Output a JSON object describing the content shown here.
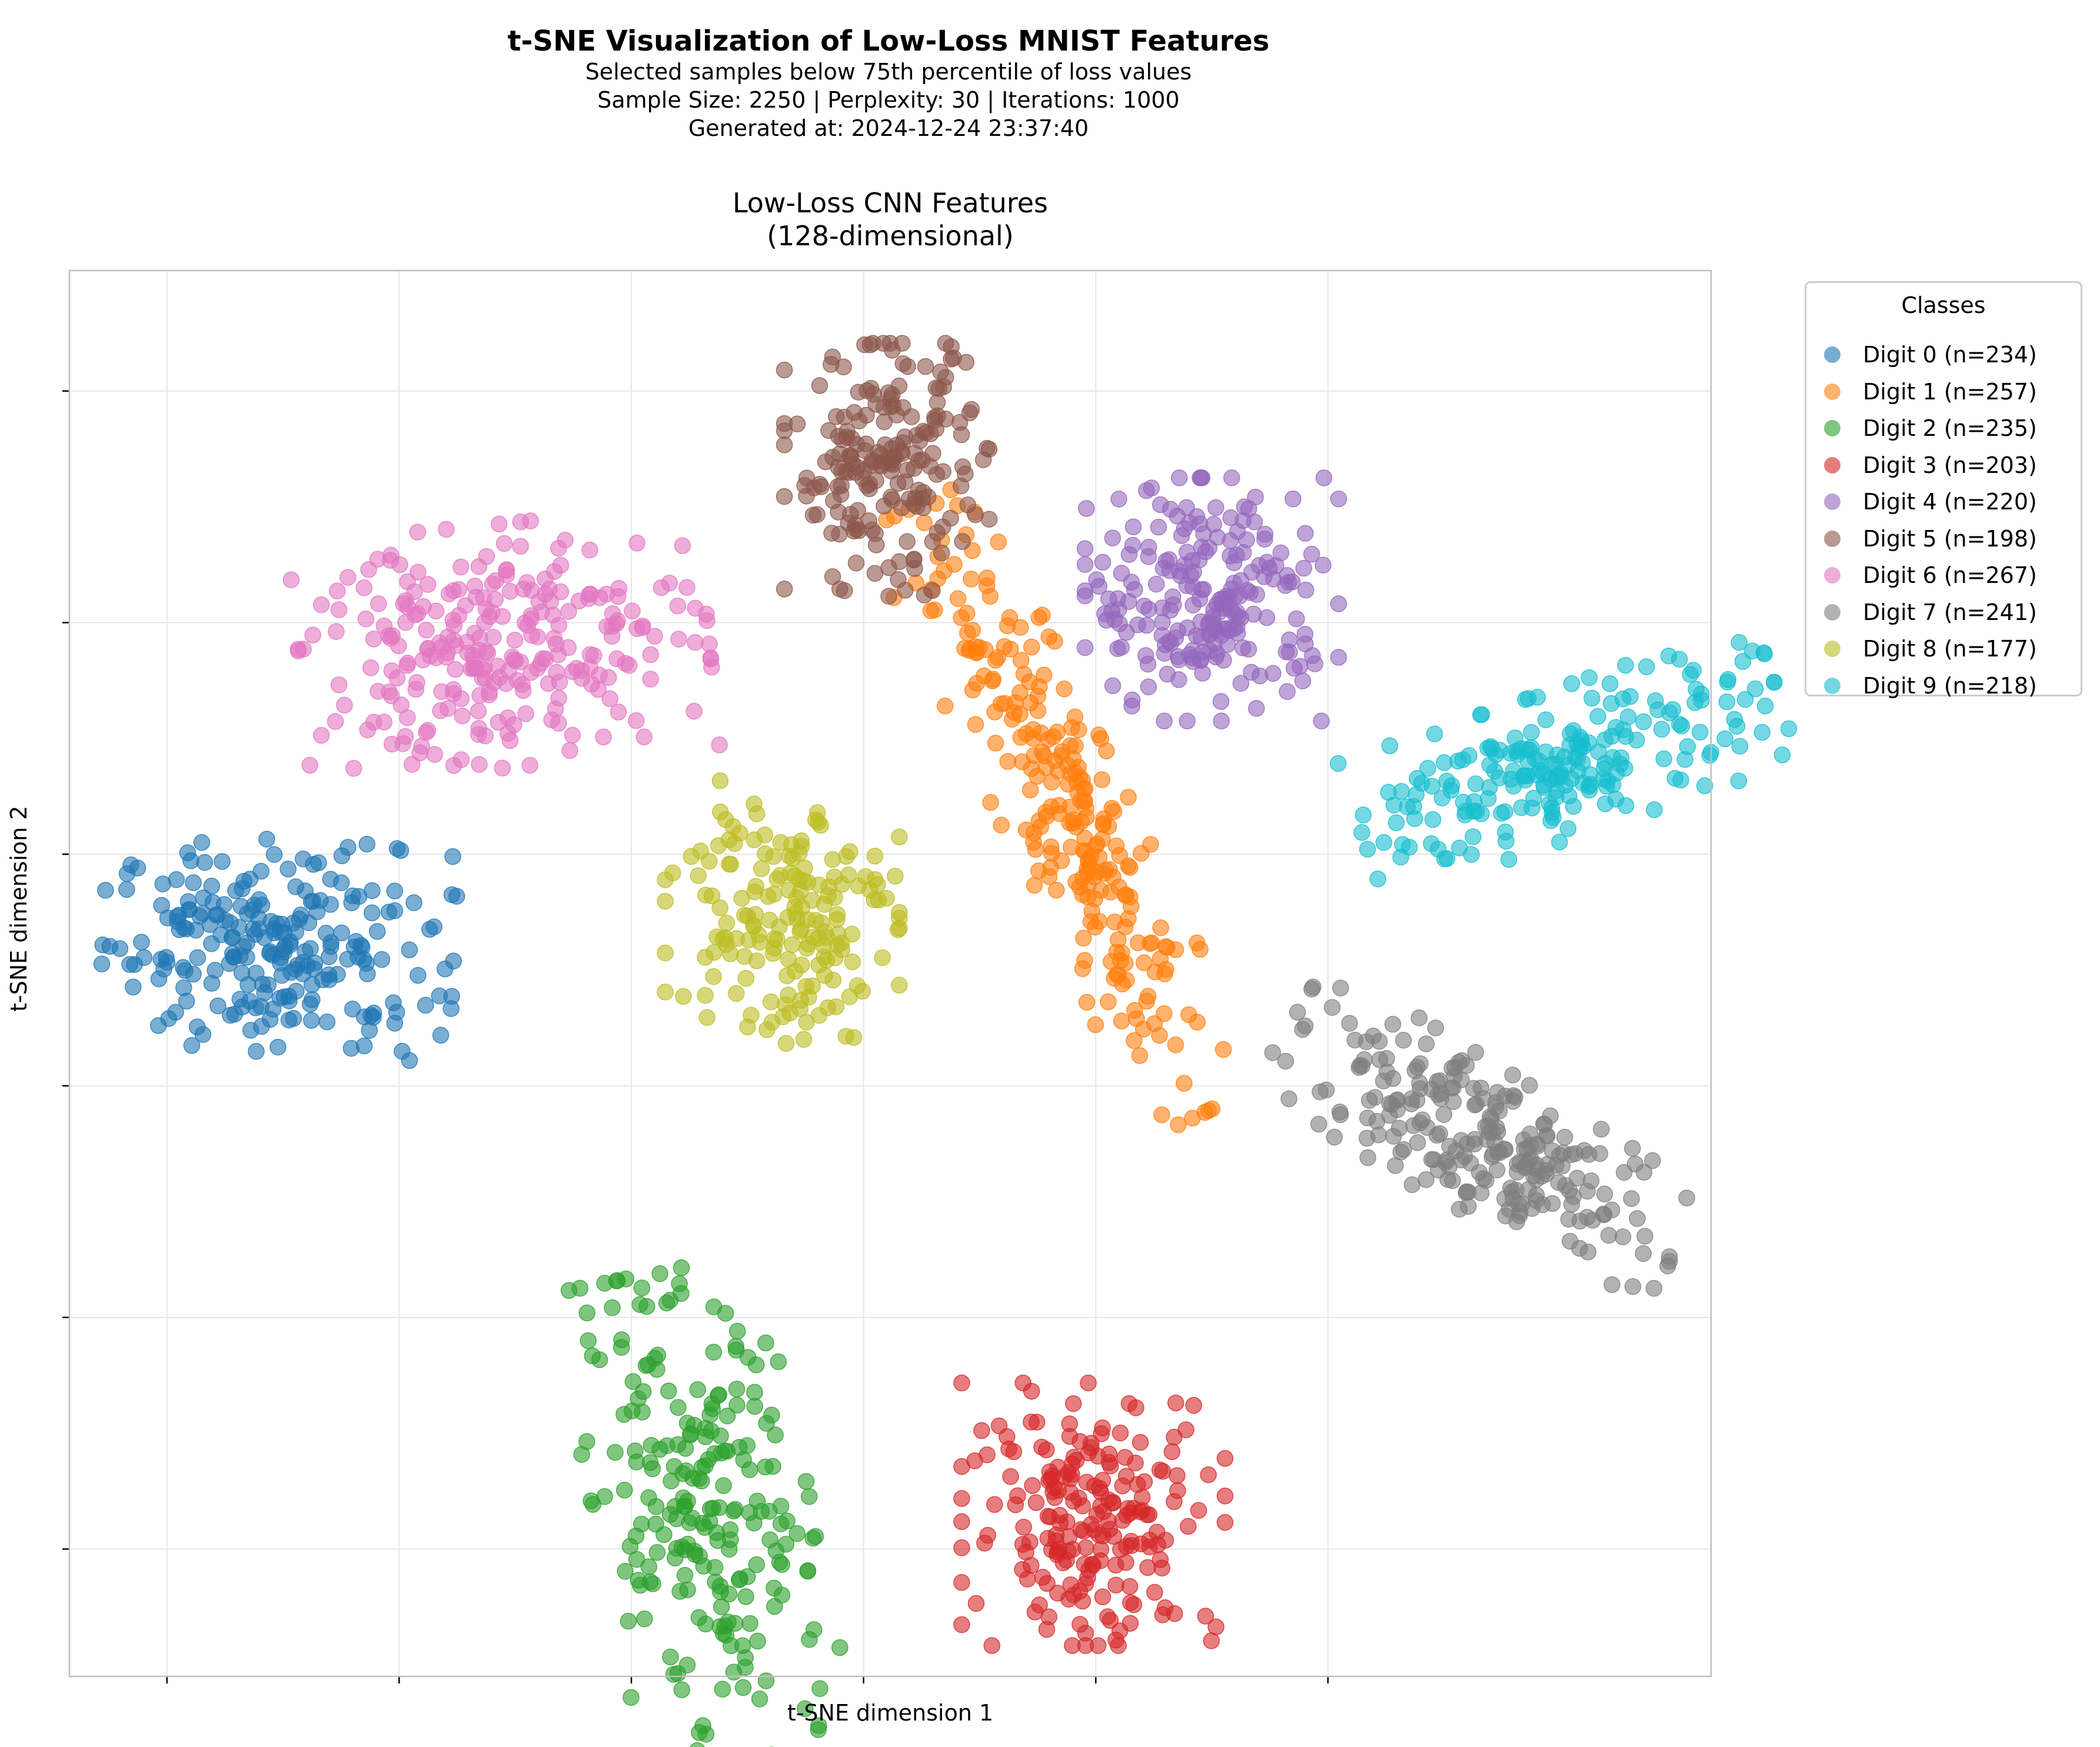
{
  "suptitle": "t-SNE Visualization of Low-Loss MNIST Features",
  "subtitle_lines": [
    "Selected samples below 75th percentile of loss values",
    "Sample Size: 2250 | Perplexity: 30 | Iterations: 1000",
    "Generated at: 2024-12-24 23:37:40"
  ],
  "chart_data": {
    "type": "scatter",
    "title_lines": [
      "Low-Loss CNN Features",
      "(128-dimensional)"
    ],
    "xlabel": "t-SNE dimension 1",
    "ylabel": "t-SNE dimension 2",
    "xlim": [
      -4.2,
      66.5
    ],
    "ylim": [
      -35.5,
      25.2
    ],
    "grid": true,
    "tick_labels_visible": false,
    "legend": {
      "title": "Classes",
      "placement": "outside-top-right"
    },
    "series": [
      {
        "name": "Digit 0 (n=234)",
        "color": "#1f77b4",
        "count": 234,
        "center": [
          4.8,
          -4.0
        ],
        "spread": [
          3.6,
          2.2
        ],
        "tilt": -0.05
      },
      {
        "name": "Digit 1 (n=257)",
        "color": "#ff7f0e",
        "count": 257,
        "center": [
          38.6,
          2.0
        ],
        "spread": [
          1.3,
          6.9
        ],
        "tilt": 0.44
      },
      {
        "name": "Digit 2 (n=235)",
        "color": "#2ca02c",
        "count": 235,
        "center": [
          23.2,
          -29.0
        ],
        "spread": [
          2.2,
          5.3
        ],
        "tilt": 0.2
      },
      {
        "name": "Digit 3 (n=203)",
        "color": "#d62728",
        "count": 203,
        "center": [
          39.9,
          -28.5
        ],
        "spread": [
          2.7,
          2.7
        ],
        "tilt": 0.0
      },
      {
        "name": "Digit 4 (n=220)",
        "color": "#9467bd",
        "count": 220,
        "center": [
          45.0,
          11.0
        ],
        "spread": [
          2.6,
          2.5
        ],
        "tilt": 0.0
      },
      {
        "name": "Digit 5 (n=198)",
        "color": "#8c564b",
        "count": 198,
        "center": [
          31.0,
          16.6
        ],
        "spread": [
          2.1,
          2.6
        ],
        "tilt": 0.0
      },
      {
        "name": "Digit 6 (n=267)",
        "color": "#e377c2",
        "count": 267,
        "center": [
          14.5,
          9.0
        ],
        "spread": [
          4.2,
          2.5
        ],
        "tilt": 0.1
      },
      {
        "name": "Digit 7 (n=241)",
        "color": "#7f7f7f",
        "count": 241,
        "center": [
          56.6,
          -12.4
        ],
        "spread": [
          4.6,
          1.5
        ],
        "tilt": -0.55
      },
      {
        "name": "Digit 8 (n=177)",
        "color": "#bcbd22",
        "count": 177,
        "center": [
          26.5,
          -2.5
        ],
        "spread": [
          2.4,
          2.7
        ],
        "tilt": 0.0
      },
      {
        "name": "Digit 9 (n=218)",
        "color": "#17becf",
        "count": 218,
        "center": [
          60.4,
          4.0
        ],
        "spread": [
          4.5,
          1.5
        ],
        "tilt": 0.33
      }
    ]
  }
}
